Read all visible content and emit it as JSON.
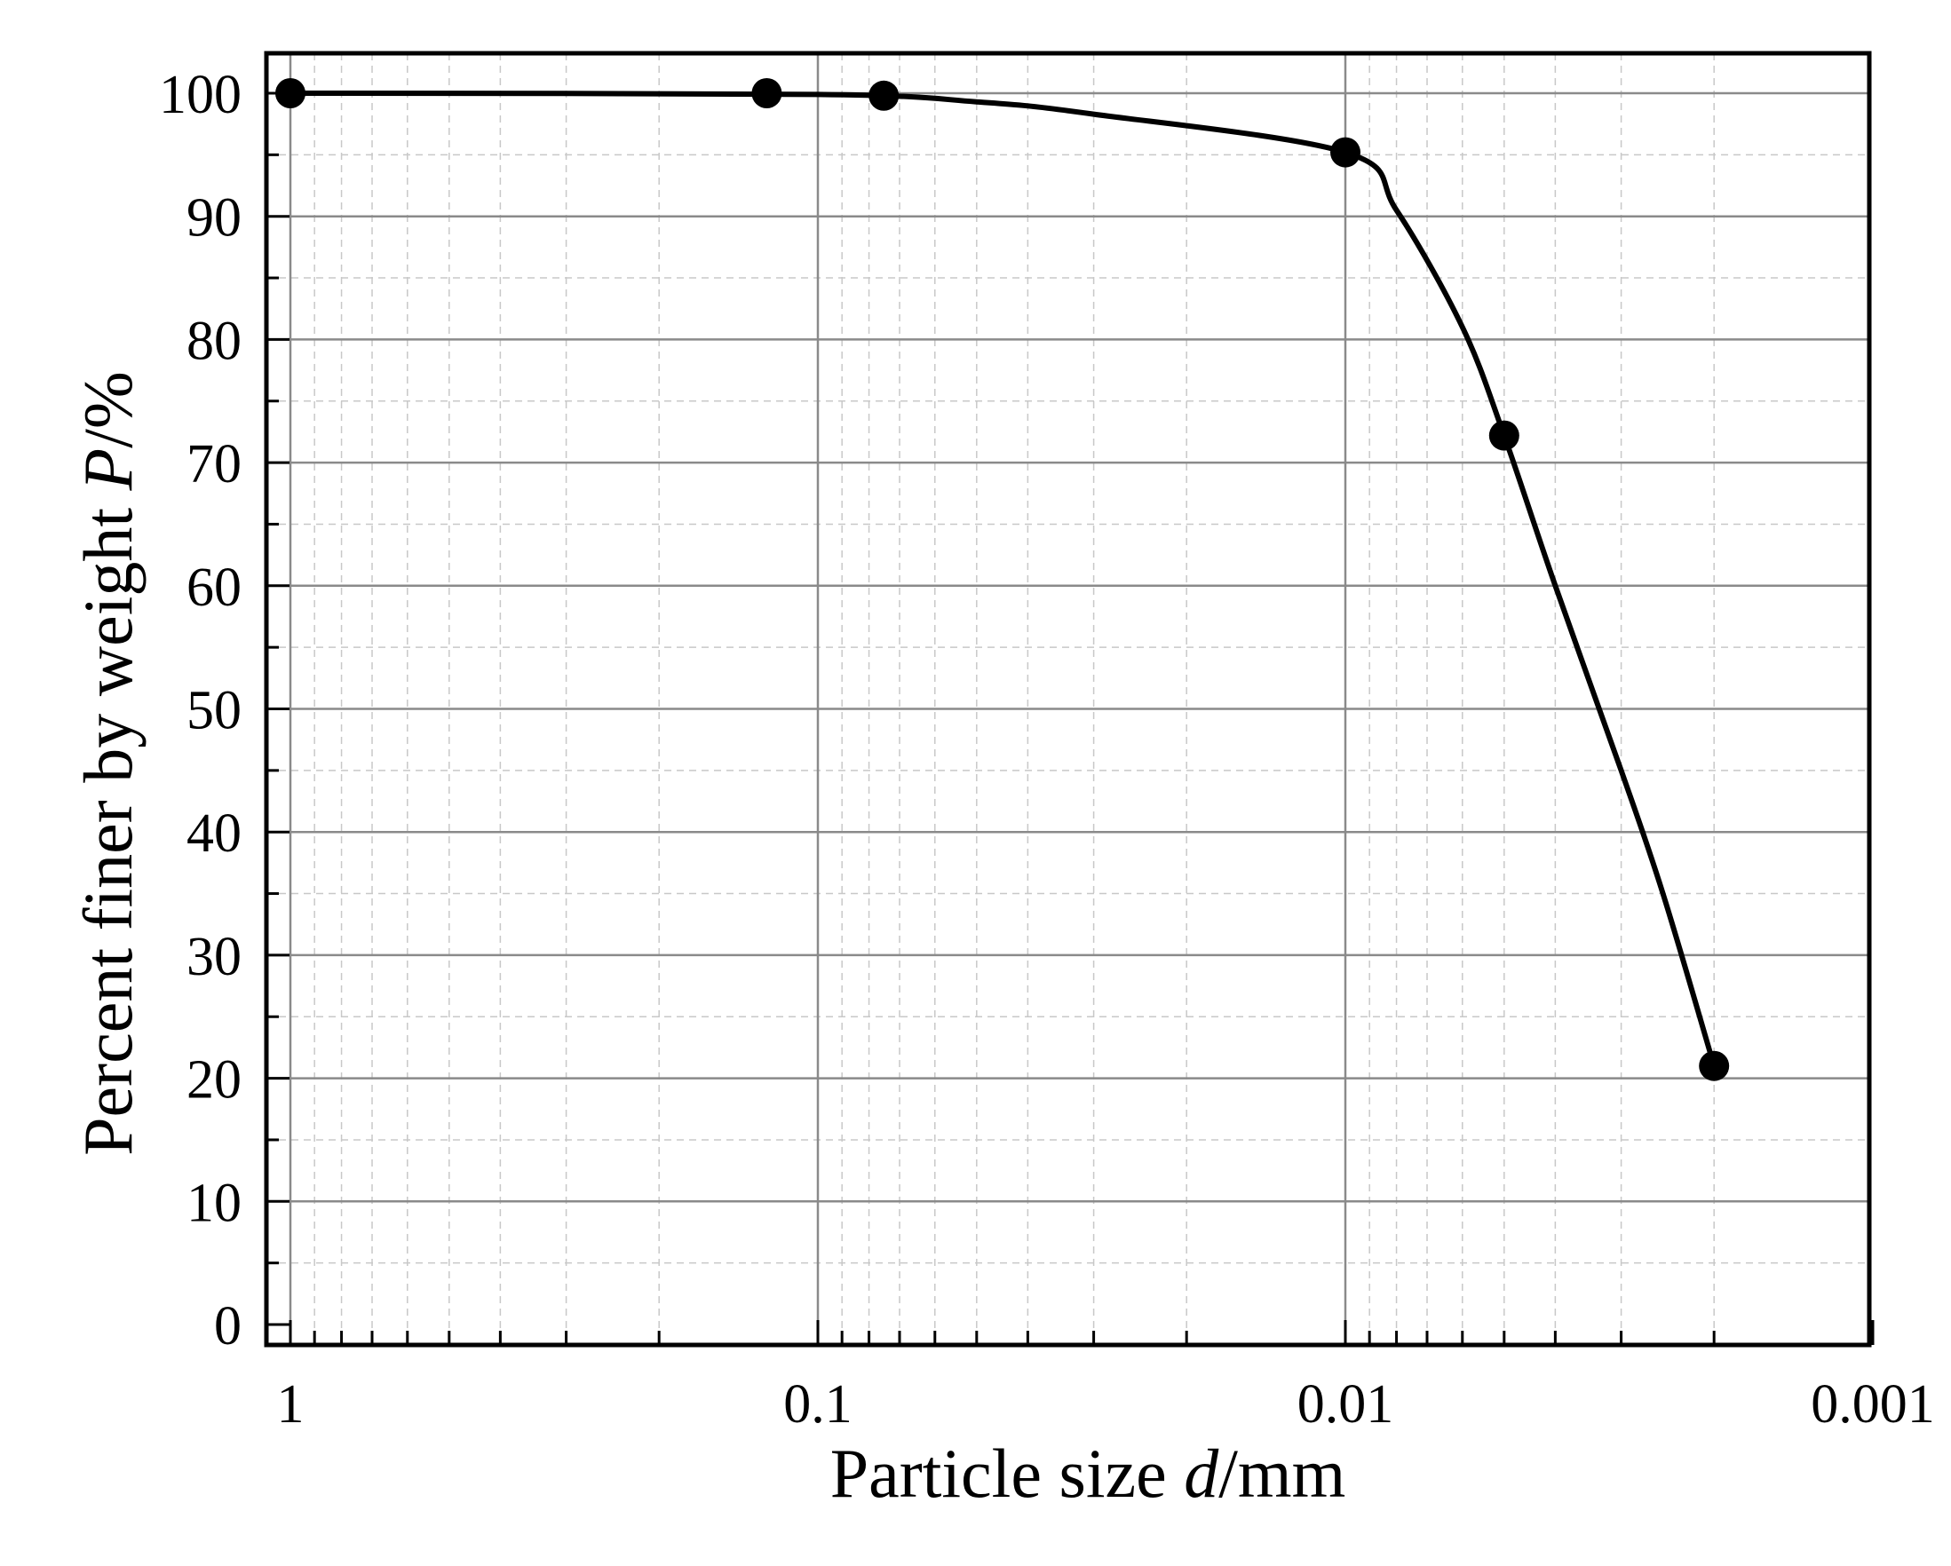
{
  "chart_data": {
    "type": "scatter",
    "title": "",
    "xlabel": {
      "pre": "Particle size ",
      "italic": "d",
      "post": "/mm"
    },
    "ylabel": {
      "pre": "Percent finer by weight ",
      "italic": "P",
      "post": "/%"
    },
    "xscale": "log",
    "xaxis_reversed": true,
    "xlim": [
      1,
      0.001
    ],
    "ylim": [
      0,
      100
    ],
    "x_tick_labels": [
      "1",
      "0.1",
      "0.01",
      "0.001"
    ],
    "x_tick_values": [
      1,
      0.1,
      0.01,
      0.001
    ],
    "y_tick_labels": [
      "0",
      "10",
      "20",
      "30",
      "40",
      "50",
      "60",
      "70",
      "80",
      "90",
      "100"
    ],
    "y_tick_values": [
      0,
      10,
      20,
      30,
      40,
      50,
      60,
      70,
      80,
      90,
      100
    ],
    "grid": true,
    "series": [
      {
        "points": [
          {
            "x": 1,
            "y": 100
          },
          {
            "x": 0.125,
            "y": 100
          },
          {
            "x": 0.075,
            "y": 99.8
          },
          {
            "x": 0.01,
            "y": 95.2
          },
          {
            "x": 0.005,
            "y": 72.2
          },
          {
            "x": 0.002,
            "y": 21
          }
        ],
        "curve": [
          {
            "x": 1,
            "y": 100
          },
          {
            "x": 0.1,
            "y": 99.9
          },
          {
            "x": 0.05,
            "y": 99.3
          },
          {
            "x": 0.03,
            "y": 98.3
          },
          {
            "x": 0.01,
            "y": 95.2
          },
          {
            "x": 0.008,
            "y": 90.5
          },
          {
            "x": 0.006,
            "y": 81
          },
          {
            "x": 0.005,
            "y": 72.2
          },
          {
            "x": 0.004,
            "y": 60
          },
          {
            "x": 0.003,
            "y": 45
          },
          {
            "x": 0.0025,
            "y": 35
          },
          {
            "x": 0.002,
            "y": 21
          }
        ],
        "color": "#000000"
      }
    ]
  }
}
